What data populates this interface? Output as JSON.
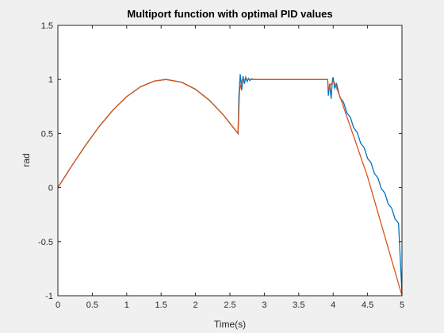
{
  "chart_data": {
    "type": "line",
    "title": "Multiport function with optimal PID values",
    "xlabel": "Time(s)",
    "ylabel": "rad",
    "xlim": [
      0,
      5
    ],
    "ylim": [
      -1,
      1.5
    ],
    "xticks": [
      0,
      0.5,
      1,
      1.5,
      2,
      2.5,
      3,
      3.5,
      4,
      4.5,
      5
    ],
    "yticks": [
      -1,
      -0.5,
      0,
      0.5,
      1,
      1.5
    ],
    "xtick_labels": [
      "0",
      "0.5",
      "1",
      "1.5",
      "2",
      "2.5",
      "3",
      "3.5",
      "4",
      "4.5",
      "5"
    ],
    "ytick_labels": [
      "-1",
      "-0.5",
      "0",
      "0.5",
      "1",
      "1.5"
    ],
    "grid": false,
    "legend": null,
    "series": [
      {
        "color": "#0072BD",
        "x": [
          0,
          0.2,
          0.4,
          0.6,
          0.8,
          1.0,
          1.2,
          1.4,
          1.571,
          1.8,
          2.0,
          2.2,
          2.4,
          2.618,
          2.63,
          2.65,
          2.67,
          2.69,
          2.71,
          2.73,
          2.75,
          2.77,
          2.79,
          2.81,
          2.85,
          3.0,
          3.5,
          3.92,
          3.93,
          3.95,
          3.97,
          3.99,
          4.0,
          4.02,
          4.05,
          4.1,
          4.15,
          4.2,
          4.25,
          4.3,
          4.35,
          4.4,
          4.45,
          4.5,
          4.55,
          4.6,
          4.65,
          4.7,
          4.75,
          4.8,
          4.85,
          4.9,
          4.95,
          5.0
        ],
        "y": [
          0,
          0.199,
          0.389,
          0.565,
          0.717,
          0.841,
          0.932,
          0.985,
          1.0,
          0.974,
          0.909,
          0.808,
          0.675,
          0.5,
          0.85,
          1.05,
          0.9,
          1.03,
          0.96,
          1.02,
          0.98,
          1.01,
          0.99,
          1.005,
          1.0,
          1.0,
          1.0,
          1.0,
          0.85,
          0.96,
          0.82,
          1.0,
          1.02,
          0.92,
          0.96,
          0.83,
          0.79,
          0.69,
          0.65,
          0.55,
          0.51,
          0.41,
          0.37,
          0.27,
          0.23,
          0.13,
          0.09,
          -0.01,
          -0.05,
          -0.15,
          -0.19,
          -0.29,
          -0.33,
          -0.98
        ]
      },
      {
        "color": "#D95319",
        "x": [
          0,
          0.2,
          0.4,
          0.6,
          0.8,
          1.0,
          1.2,
          1.4,
          1.571,
          1.8,
          2.0,
          2.2,
          2.4,
          2.618,
          2.64,
          2.68,
          3.0,
          3.5,
          3.92,
          3.93,
          3.96,
          4.0,
          4.02,
          4.1,
          4.5,
          5.0
        ],
        "y": [
          0,
          0.199,
          0.389,
          0.565,
          0.717,
          0.841,
          0.932,
          0.985,
          1.0,
          0.974,
          0.909,
          0.808,
          0.675,
          0.5,
          0.9,
          1.0,
          1.0,
          1.0,
          1.0,
          0.9,
          0.95,
          0.98,
          0.97,
          0.84,
          0.1,
          -1.0
        ]
      }
    ]
  }
}
